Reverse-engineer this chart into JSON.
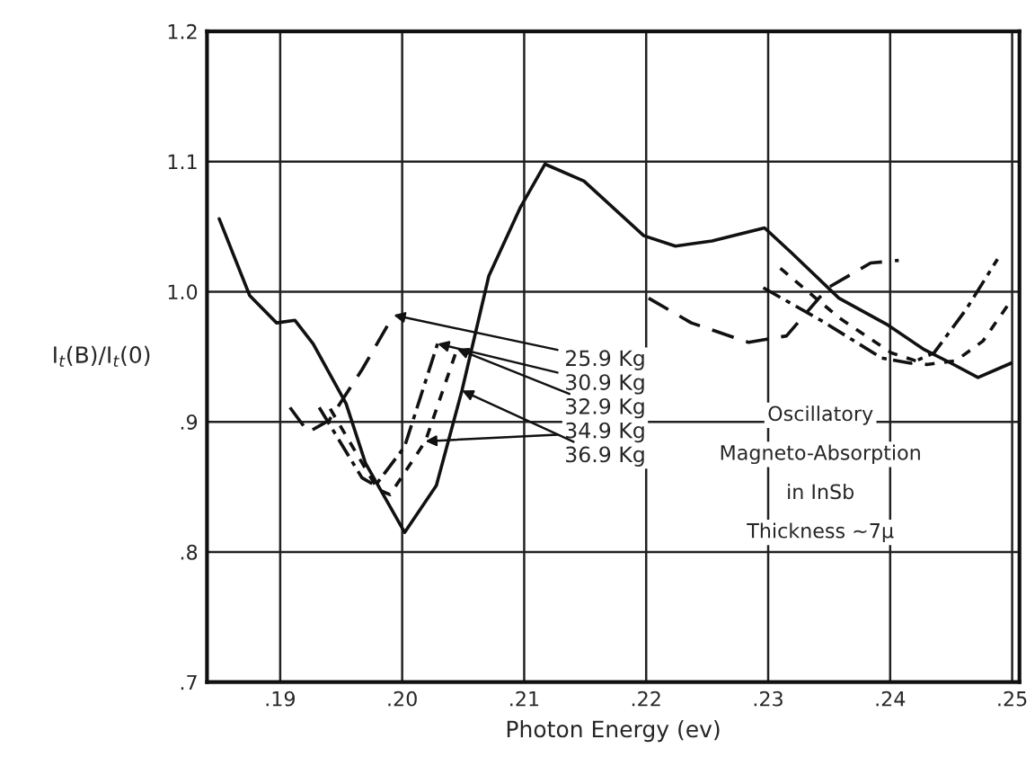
{
  "chart_data": {
    "type": "line",
    "xlabel": "Photon Energy (ev)",
    "ylabel": "I$_{t}$(B)/I$_{t}$(0)",
    "xlim": [
      0.184,
      0.2506
    ],
    "ylim": [
      0.7,
      1.2
    ],
    "xticks": [
      {
        "value": 0.19,
        "label": ".19"
      },
      {
        "value": 0.2,
        "label": ".20"
      },
      {
        "value": 0.21,
        "label": ".21"
      },
      {
        "value": 0.22,
        "label": ".22"
      },
      {
        "value": 0.23,
        "label": ".23"
      },
      {
        "value": 0.24,
        "label": ".24"
      },
      {
        "value": 0.25,
        "label": ".25"
      }
    ],
    "yticks": [
      {
        "value": 0.7,
        "label": ".7"
      },
      {
        "value": 0.8,
        "label": ".8"
      },
      {
        "value": 0.9,
        "label": ".9"
      },
      {
        "value": 1.0,
        "label": "1.0"
      },
      {
        "value": 1.1,
        "label": "1.1"
      },
      {
        "value": 1.2,
        "label": "1.2"
      }
    ],
    "grid": true,
    "legend": false,
    "marker": "none",
    "series": [
      {
        "color": "#111111",
        "line_style": "solid",
        "x": [
          0.185,
          0.1875,
          0.1897,
          0.1912,
          0.1927,
          0.1954,
          0.197,
          0.2002,
          0.2028,
          0.2049,
          0.2071,
          0.2097,
          0.2117,
          0.2149,
          0.2198,
          0.2224,
          0.2254,
          0.2297,
          0.2319,
          0.2358,
          0.2397,
          0.2427,
          0.245,
          0.2472,
          0.2499
        ],
        "values": [
          1.056,
          0.997,
          0.976,
          0.978,
          0.96,
          0.914,
          0.868,
          0.815,
          0.851,
          0.924,
          1.012,
          1.065,
          1.098,
          1.085,
          1.043,
          1.035,
          1.039,
          1.049,
          1.03,
          0.995,
          0.975,
          0.956,
          0.945,
          0.934,
          0.945
        ]
      },
      {
        "color": "#111111",
        "line_style": "dashed",
        "x": [
          0.1908,
          0.1923,
          0.194,
          0.1967,
          0.1993,
          0.21,
          0.2202,
          0.2237,
          0.2284,
          0.2315,
          0.2349,
          0.2384,
          0.2407
        ],
        "values": [
          0.911,
          0.892,
          0.901,
          0.94,
          0.982,
          null,
          0.995,
          0.976,
          0.961,
          0.966,
          1.003,
          1.022,
          1.024
        ]
      },
      {
        "color": "#111111",
        "line_style": "dashdot",
        "x": [
          0.1932,
          0.1967,
          0.1978,
          0.2002,
          0.2029,
          0.21,
          0.2296,
          0.2345,
          0.2393,
          0.2417,
          0.2436,
          0.2462,
          0.2488
        ],
        "values": [
          0.911,
          0.857,
          0.851,
          0.881,
          0.96,
          null,
          1.003,
          0.977,
          0.949,
          0.945,
          0.953,
          0.986,
          1.025
        ]
      },
      {
        "color": "#111111",
        "line_style": "dotted",
        "x": [
          0.1941,
          0.198,
          0.199,
          0.2019,
          0.2045,
          0.21,
          0.231,
          0.2358,
          0.2401,
          0.243,
          0.2454,
          0.2476,
          0.2496
        ],
        "values": [
          0.91,
          0.848,
          0.844,
          0.885,
          0.956,
          null,
          1.018,
          0.98,
          0.953,
          0.944,
          0.947,
          0.962,
          0.989
        ]
      }
    ],
    "annotations": [
      {
        "text": "25.9 Kg",
        "x": 0.1993,
        "y": 0.982
      },
      {
        "text": "30.9 Kg",
        "x": 0.2029,
        "y": 0.96
      },
      {
        "text": "32.9 Kg",
        "x": 0.2045,
        "y": 0.956
      },
      {
        "text": "34.9 Kg",
        "x": 0.2019,
        "y": 0.885
      },
      {
        "text": "36.9 Kg",
        "x": 0.2049,
        "y": 0.924
      },
      "Oscillatory",
      "Magneto-Absorption",
      "in InSb",
      "Thickness ~7μ"
    ]
  }
}
